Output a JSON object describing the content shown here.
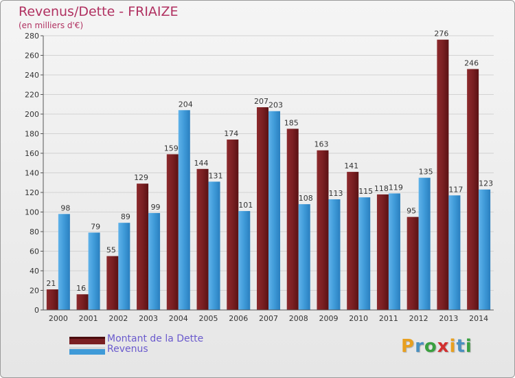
{
  "header": {
    "title": "Revenus/Dette - FRIAIZE",
    "subtitle": "(en milliers d'€)"
  },
  "legend": [
    {
      "label": "Montant de la Dette",
      "color": "#7a1f22"
    },
    {
      "label": "Revenus",
      "color": "#3f9ad8"
    }
  ],
  "brand": {
    "text": "Proxiti",
    "letters": [
      "P",
      "r",
      "o",
      "x",
      "i",
      "t",
      "i"
    ],
    "colors": [
      "#e8a020",
      "#4a90c0",
      "#3aa040",
      "#d23030",
      "#e8a020",
      "#4a90c0",
      "#3aa040"
    ]
  },
  "chart_data": {
    "type": "bar",
    "title": "Revenus/Dette - FRIAIZE",
    "subtitle": "(en milliers d'€)",
    "categories": [
      "2000",
      "2001",
      "2002",
      "2003",
      "2004",
      "2005",
      "2006",
      "2007",
      "2008",
      "2009",
      "2010",
      "2011",
      "2012",
      "2013",
      "2014"
    ],
    "series": [
      {
        "name": "Montant de la Dette",
        "color": "#7a1f22",
        "values": [
          21,
          16,
          55,
          129,
          159,
          144,
          174,
          207,
          185,
          163,
          141,
          118,
          95,
          276,
          246
        ]
      },
      {
        "name": "Revenus",
        "color": "#3f9ad8",
        "values": [
          98,
          79,
          89,
          99,
          204,
          131,
          101,
          203,
          108,
          113,
          115,
          119,
          135,
          117,
          123
        ]
      }
    ],
    "y_ticks": [
      "0",
      "20",
      "40",
      "60",
      "80",
      "100",
      "120",
      "140",
      "160",
      "180",
      "200",
      "220",
      "240",
      "260",
      "280"
    ],
    "ylim": [
      0,
      280
    ],
    "grid": true,
    "legend_position": "bottom-left"
  }
}
